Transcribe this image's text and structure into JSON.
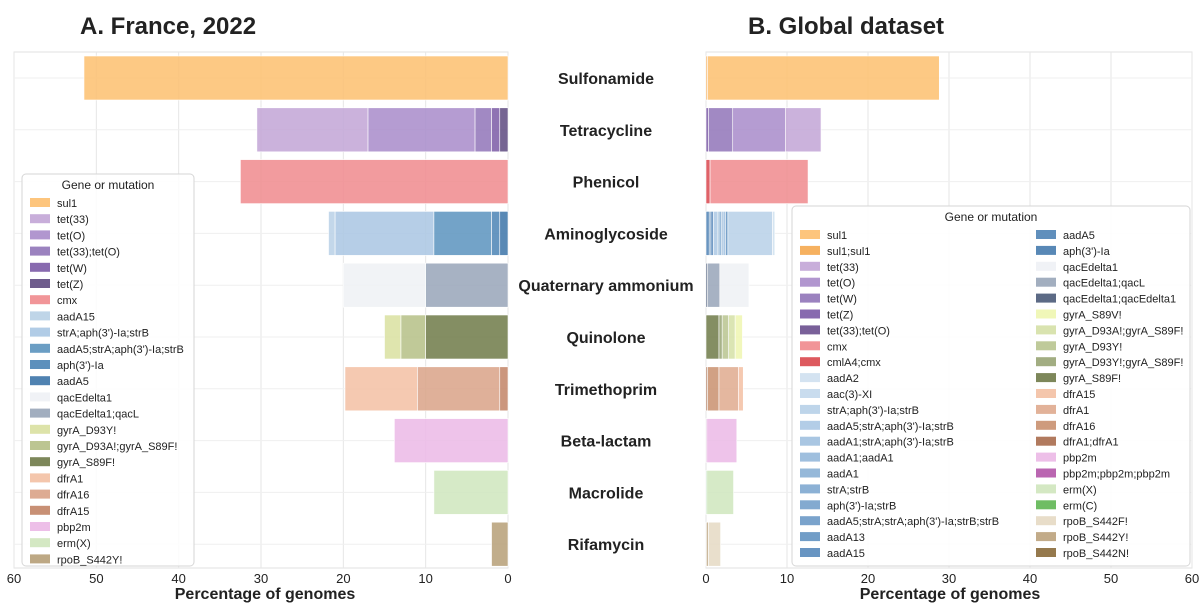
{
  "chart_data": [
    {
      "type": "bar",
      "orientation": "horizontal-stacked",
      "title": "A. France, 2022",
      "xlabel": "Percentage of genomes",
      "xlim": [
        60,
        0
      ],
      "x_inverted": true,
      "xticks": [
        "60",
        "50",
        "40",
        "30",
        "20",
        "10",
        "0"
      ],
      "grid": true,
      "legend_title": "Gene or mutation",
      "legend_position": "left",
      "categories": [
        "Sulfonamide",
        "Tetracycline",
        "Phenicol",
        "Aminoglycoside",
        "Quaternary ammonium",
        "Quinolone",
        "Trimethoprim",
        "Beta-lactam",
        "Macrolide",
        "Rifamycin"
      ],
      "legend": [
        {
          "name": "sul1",
          "color": "#fdbf6f"
        },
        {
          "name": "tet(33)",
          "color": "#c2a5d6"
        },
        {
          "name": "tet(O)",
          "color": "#a88bca"
        },
        {
          "name": "tet(33);tet(O)",
          "color": "#9074b8"
        },
        {
          "name": "tet(W)",
          "color": "#7b5aa6"
        },
        {
          "name": "tet(Z)",
          "color": "#5e4a80"
        },
        {
          "name": "cmx",
          "color": "#f08a8d"
        },
        {
          "name": "aadA15",
          "color": "#b8d0e6"
        },
        {
          "name": "strA;aph(3')-Ia;strB",
          "color": "#a9c6e3"
        },
        {
          "name": "aadA5;strA;aph(3')-Ia;strB",
          "color": "#5b93be"
        },
        {
          "name": "aph(3')-Ia",
          "color": "#4b84b5"
        },
        {
          "name": "aadA5",
          "color": "#3c74a8"
        },
        {
          "name": "qacEdelta1",
          "color": "#eef1f5"
        },
        {
          "name": "qacEdelta1;qacL",
          "color": "#98a5b8"
        },
        {
          "name": "gyrA_D93Y!",
          "color": "#d9e0a0"
        },
        {
          "name": "gyrA_D93A!;gyrA_S89F!",
          "color": "#b5bf86"
        },
        {
          "name": "gyrA_S89F!",
          "color": "#6f7a48"
        },
        {
          "name": "dfrA1",
          "color": "#f3c0a3"
        },
        {
          "name": "dfrA16",
          "color": "#d9a287"
        },
        {
          "name": "dfrA15",
          "color": "#c28466"
        },
        {
          "name": "pbp2m",
          "color": "#ebb8e6"
        },
        {
          "name": "erm(X)",
          "color": "#cfe6bd"
        },
        {
          "name": "rpoB_S442Y!",
          "color": "#b69f77"
        }
      ],
      "stacks": [
        {
          "category": "Sulfonamide",
          "segments": [
            {
              "gene": "sul1",
              "start": 0,
              "end": 51.5,
              "color": "#fdbf6f"
            }
          ]
        },
        {
          "category": "Tetracycline",
          "segments": [
            {
              "gene": "tet(33)",
              "start": 17,
              "end": 30.5,
              "color": "#c2a5d6"
            },
            {
              "gene": "tet(O)",
              "start": 4,
              "end": 17,
              "color": "#a88bca"
            },
            {
              "gene": "tet(33);tet(O)",
              "start": 2,
              "end": 4,
              "color": "#9074b8"
            },
            {
              "gene": "tet(W)",
              "start": 1,
              "end": 2,
              "color": "#7b5aa6"
            },
            {
              "gene": "tet(Z)",
              "start": 0,
              "end": 1,
              "color": "#5e4a80"
            }
          ]
        },
        {
          "category": "Phenicol",
          "segments": [
            {
              "gene": "cmx",
              "start": 0,
              "end": 32.5,
              "color": "#f08a8d"
            }
          ]
        },
        {
          "category": "Aminoglycoside",
          "segments": [
            {
              "gene": "aadA15",
              "start": 21,
              "end": 21.8,
              "color": "#b8d0e6"
            },
            {
              "gene": "strA;aph(3')-Ia;strB",
              "start": 9,
              "end": 21,
              "color": "#a9c6e3"
            },
            {
              "gene": "aadA5;strA;aph(3')-Ia;strB",
              "start": 2,
              "end": 9,
              "color": "#5b93be"
            },
            {
              "gene": "aph(3')-Ia",
              "start": 1,
              "end": 2,
              "color": "#4b84b5"
            },
            {
              "gene": "aadA5",
              "start": 0,
              "end": 1,
              "color": "#3c74a8"
            }
          ]
        },
        {
          "category": "Quaternary ammonium",
          "segments": [
            {
              "gene": "qacEdelta1",
              "start": 10,
              "end": 20,
              "color": "#eef1f5"
            },
            {
              "gene": "qacEdelta1;qacL",
              "start": 0,
              "end": 10,
              "color": "#98a5b8"
            }
          ]
        },
        {
          "category": "Quinolone",
          "segments": [
            {
              "gene": "gyrA_D93Y!",
              "start": 13,
              "end": 15,
              "color": "#d9e0a0"
            },
            {
              "gene": "gyrA_D93A!;gyrA_S89F!",
              "start": 10,
              "end": 13,
              "color": "#b5bf86"
            },
            {
              "gene": "gyrA_S89F!",
              "start": 0,
              "end": 10,
              "color": "#6f7a48"
            }
          ]
        },
        {
          "category": "Trimethoprim",
          "segments": [
            {
              "gene": "dfrA1",
              "start": 11,
              "end": 19.8,
              "color": "#f3c0a3"
            },
            {
              "gene": "dfrA16",
              "start": 1,
              "end": 11,
              "color": "#d9a287"
            },
            {
              "gene": "dfrA15",
              "start": 0,
              "end": 1,
              "color": "#c28466"
            }
          ]
        },
        {
          "category": "Beta-lactam",
          "segments": [
            {
              "gene": "pbp2m",
              "start": 0,
              "end": 13.8,
              "color": "#ebb8e6"
            }
          ]
        },
        {
          "category": "Macrolide",
          "segments": [
            {
              "gene": "erm(X)",
              "start": 0,
              "end": 9,
              "color": "#cfe6bd"
            }
          ]
        },
        {
          "category": "Rifamycin",
          "segments": [
            {
              "gene": "rpoB_S442Y!",
              "start": 0,
              "end": 2,
              "color": "#b69f77"
            }
          ]
        }
      ]
    },
    {
      "type": "bar",
      "orientation": "horizontal-stacked",
      "title": "B. Global dataset",
      "xlabel": "Percentage of genomes",
      "xlim": [
        0,
        60
      ],
      "xticks": [
        "0",
        "10",
        "20",
        "30",
        "40",
        "50",
        "60"
      ],
      "grid": true,
      "legend_title": "Gene or mutation",
      "legend_position": "right",
      "legend_columns": 2,
      "categories": [
        "Sulfonamide",
        "Tetracycline",
        "Phenicol",
        "Aminoglycoside",
        "Quaternary ammonium",
        "Quinolone",
        "Trimethoprim",
        "Beta-lactam",
        "Macrolide",
        "Rifamycin"
      ],
      "legend": [
        {
          "name": "sul1",
          "color": "#fdbf6f"
        },
        {
          "name": "sul1;sul1",
          "color": "#f5a94f"
        },
        {
          "name": "tet(33)",
          "color": "#c2a5d6"
        },
        {
          "name": "tet(O)",
          "color": "#a88bca"
        },
        {
          "name": "tet(W)",
          "color": "#9074b8"
        },
        {
          "name": "tet(Z)",
          "color": "#7b5aa6"
        },
        {
          "name": "tet(33);tet(O)",
          "color": "#6a4f8e"
        },
        {
          "name": "cmx",
          "color": "#f08a8d"
        },
        {
          "name": "cmlA4;cmx",
          "color": "#d9474d"
        },
        {
          "name": "aadA2",
          "color": "#cfe0ef"
        },
        {
          "name": "aac(3)-XI",
          "color": "#c3d8ec"
        },
        {
          "name": "strA;aph(3')-Ia;strB",
          "color": "#b7d0e8"
        },
        {
          "name": "aadA5;strA;aph(3')-Ia;strB",
          "color": "#abc8e4"
        },
        {
          "name": "aadA1;strA;aph(3')-Ia;strB",
          "color": "#a0c0df"
        },
        {
          "name": "aadA1;aadA1",
          "color": "#95b8da"
        },
        {
          "name": "aadA1",
          "color": "#8ab0d5"
        },
        {
          "name": "strA;strB",
          "color": "#80a9d0"
        },
        {
          "name": "aph(3')-Ia;strB",
          "color": "#76a1cb"
        },
        {
          "name": "aadA5;strA;strA;aph(3')-Ia;strB;strB",
          "color": "#6c99c6"
        },
        {
          "name": "aadA13",
          "color": "#6292c1"
        },
        {
          "name": "aadA15",
          "color": "#588abb"
        },
        {
          "name": "aadA5",
          "color": "#4f83b5"
        },
        {
          "name": "aph(3')-Ia",
          "color": "#467bae"
        },
        {
          "name": "qacEdelta1",
          "color": "#eef1f5"
        },
        {
          "name": "qacEdelta1;qacL",
          "color": "#98a5b8"
        },
        {
          "name": "qacEdelta1;qacEdelta1",
          "color": "#4a5a78"
        },
        {
          "name": "gyrA_S89V!",
          "color": "#eef6b0"
        },
        {
          "name": "gyrA_D93A!;gyrA_S89F!",
          "color": "#d5e0a6"
        },
        {
          "name": "gyrA_D93Y!",
          "color": "#b8c48f"
        },
        {
          "name": "gyrA_D93Y!;gyrA_S89F!",
          "color": "#98a474"
        },
        {
          "name": "gyrA_S89F!",
          "color": "#6f7a48"
        },
        {
          "name": "dfrA15",
          "color": "#f3c0a3"
        },
        {
          "name": "dfrA1",
          "color": "#dfaa8e"
        },
        {
          "name": "dfrA16",
          "color": "#c9906f"
        },
        {
          "name": "dfrA1;dfrA1",
          "color": "#a86c4c"
        },
        {
          "name": "pbp2m",
          "color": "#ebb8e6"
        },
        {
          "name": "pbp2m;pbp2m;pbp2m",
          "color": "#b355a8"
        },
        {
          "name": "erm(X)",
          "color": "#cfe6bd"
        },
        {
          "name": "erm(C)",
          "color": "#5fb653"
        },
        {
          "name": "rpoB_S442F!",
          "color": "#e5d9c3"
        },
        {
          "name": "rpoB_S442Y!",
          "color": "#bba27c"
        },
        {
          "name": "rpoB_S442N!",
          "color": "#8a6a3a"
        }
      ],
      "stacks": [
        {
          "category": "Sulfonamide",
          "segments": [
            {
              "gene": "sul1;sul1",
              "start": 0,
              "end": 0.2,
              "color": "#f5a94f"
            },
            {
              "gene": "sul1",
              "start": 0.2,
              "end": 28.8,
              "color": "#fdbf6f"
            }
          ]
        },
        {
          "category": "Tetracycline",
          "segments": [
            {
              "gene": "tet(Z)",
              "start": 0,
              "end": 0.3,
              "color": "#7b5aa6"
            },
            {
              "gene": "tet(W)",
              "start": 0.3,
              "end": 3.3,
              "color": "#9074b8"
            },
            {
              "gene": "tet(O)",
              "start": 3.3,
              "end": 9.8,
              "color": "#a88bca"
            },
            {
              "gene": "tet(33)",
              "start": 9.8,
              "end": 14.2,
              "color": "#c2a5d6"
            }
          ]
        },
        {
          "category": "Phenicol",
          "segments": [
            {
              "gene": "cmlA4;cmx",
              "start": 0,
              "end": 0.5,
              "color": "#d9474d"
            },
            {
              "gene": "cmx",
              "start": 0.5,
              "end": 12.6,
              "color": "#f08a8d"
            }
          ]
        },
        {
          "category": "Aminoglycoside",
          "segments": [
            {
              "gene": "aadA5",
              "start": 0,
              "end": 0.4,
              "color": "#4f83b5"
            },
            {
              "gene": "aph(3')-Ia",
              "start": 0.4,
              "end": 0.6,
              "color": "#467bae"
            },
            {
              "gene": "aadA15",
              "start": 0.6,
              "end": 0.9,
              "color": "#588abb"
            },
            {
              "gene": "aadA5;strA;aph(3')-Ia;strB",
              "start": 0.9,
              "end": 1.4,
              "color": "#abc8e4"
            },
            {
              "gene": "strA;strB",
              "start": 1.4,
              "end": 1.6,
              "color": "#80a9d0"
            },
            {
              "gene": "aadA1",
              "start": 1.6,
              "end": 1.9,
              "color": "#8ab0d5"
            },
            {
              "gene": "aph(3')-Ia;strB",
              "start": 1.9,
              "end": 2.1,
              "color": "#76a1cb"
            },
            {
              "gene": "aadA1;strA;aph(3')-Ia;strB",
              "start": 2.1,
              "end": 2.4,
              "color": "#a0c0df"
            },
            {
              "gene": "aadA13",
              "start": 2.4,
              "end": 2.7,
              "color": "#6292c1"
            },
            {
              "gene": "strA;aph(3')-Ia;strB",
              "start": 2.7,
              "end": 8.2,
              "color": "#b7d0e8"
            },
            {
              "gene": "aadA2",
              "start": 8.2,
              "end": 8.5,
              "color": "#cfe0ef"
            }
          ]
        },
        {
          "category": "Quaternary ammonium",
          "segments": [
            {
              "gene": "qacEdelta1;qacEdelta1",
              "start": 0,
              "end": 0.2,
              "color": "#4a5a78"
            },
            {
              "gene": "qacEdelta1;qacL",
              "start": 0.2,
              "end": 1.7,
              "color": "#98a5b8"
            },
            {
              "gene": "qacEdelta1",
              "start": 1.7,
              "end": 5.3,
              "color": "#eef1f5"
            }
          ]
        },
        {
          "category": "Quinolone",
          "segments": [
            {
              "gene": "gyrA_S89F!",
              "start": 0,
              "end": 1.6,
              "color": "#6f7a48"
            },
            {
              "gene": "gyrA_D93Y!;gyrA_S89F!",
              "start": 1.6,
              "end": 2.0,
              "color": "#98a474"
            },
            {
              "gene": "gyrA_D93Y!",
              "start": 2.0,
              "end": 2.8,
              "color": "#b8c48f"
            },
            {
              "gene": "gyrA_D93A!;gyrA_S89F!",
              "start": 2.8,
              "end": 3.6,
              "color": "#d5e0a6"
            },
            {
              "gene": "gyrA_S89V!",
              "start": 3.6,
              "end": 4.5,
              "color": "#eef6b0"
            }
          ]
        },
        {
          "category": "Trimethoprim",
          "segments": [
            {
              "gene": "dfrA1;dfrA1",
              "start": 0,
              "end": 0.2,
              "color": "#a86c4c"
            },
            {
              "gene": "dfrA16",
              "start": 0.2,
              "end": 1.6,
              "color": "#c9906f"
            },
            {
              "gene": "dfrA1",
              "start": 1.6,
              "end": 4.0,
              "color": "#dfaa8e"
            },
            {
              "gene": "dfrA15",
              "start": 4.0,
              "end": 4.6,
              "color": "#f3c0a3"
            }
          ]
        },
        {
          "category": "Beta-lactam",
          "segments": [
            {
              "gene": "pbp2m;pbp2m;pbp2m",
              "start": 0,
              "end": 0.1,
              "color": "#b355a8"
            },
            {
              "gene": "pbp2m",
              "start": 0.1,
              "end": 3.8,
              "color": "#ebb8e6"
            }
          ]
        },
        {
          "category": "Macrolide",
          "segments": [
            {
              "gene": "erm(C)",
              "start": 0,
              "end": 0.1,
              "color": "#5fb653"
            },
            {
              "gene": "erm(X)",
              "start": 0.1,
              "end": 3.4,
              "color": "#cfe6bd"
            }
          ]
        },
        {
          "category": "Rifamycin",
          "segments": [
            {
              "gene": "rpoB_S442N!",
              "start": 0,
              "end": 0.1,
              "color": "#8a6a3a"
            },
            {
              "gene": "rpoB_S442Y!",
              "start": 0.1,
              "end": 0.3,
              "color": "#bba27c"
            },
            {
              "gene": "rpoB_S442F!",
              "start": 0.3,
              "end": 1.8,
              "color": "#e5d9c3"
            }
          ]
        }
      ]
    }
  ]
}
